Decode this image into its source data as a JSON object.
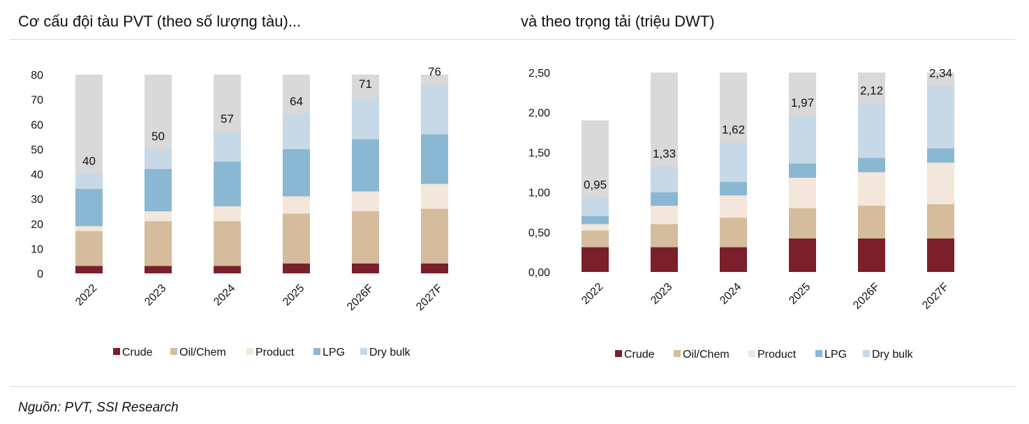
{
  "header": {
    "left_title": "Cơ cấu đội tàu PVT (theo số lượng tàu)...",
    "right_title": "và theo trọng tải (triệu DWT)"
  },
  "footer": {
    "source": "Nguồn: PVT, SSI Research"
  },
  "colors": {
    "Crude": "#7b1f2c",
    "Oil/Chem": "#d4bc9c",
    "Product": "#f3e6da",
    "LPG": "#8ab8d3",
    "Dry bulk": "#c7d8e6",
    "Background": "#d9d9d9"
  },
  "chart_data": [
    {
      "type": "bar",
      "stacked": true,
      "title": "Cơ cấu đội tàu PVT (theo số lượng tàu)...",
      "categories": [
        "2022",
        "2023",
        "2024",
        "2025",
        "2026F",
        "2027F"
      ],
      "ylim": [
        0,
        80
      ],
      "yticks": [
        "0",
        "10",
        "20",
        "30",
        "40",
        "50",
        "60",
        "70",
        "80"
      ],
      "background_bar_value": 80,
      "series": [
        {
          "name": "Crude",
          "values": [
            3,
            3,
            3,
            4,
            4,
            4
          ]
        },
        {
          "name": "Oil/Chem",
          "values": [
            14,
            18,
            18,
            20,
            21,
            22
          ]
        },
        {
          "name": "Product",
          "values": [
            2,
            4,
            6,
            7,
            8,
            10
          ]
        },
        {
          "name": "LPG",
          "values": [
            15,
            17,
            18,
            19,
            21,
            20
          ]
        },
        {
          "name": "Dry bulk",
          "values": [
            6,
            8,
            12,
            14,
            17,
            20
          ]
        }
      ],
      "total_labels": [
        "40",
        "50",
        "57",
        "64",
        "71",
        "76"
      ],
      "legend": [
        "Crude",
        "Oil/Chem",
        "Product",
        "LPG",
        "Dry bulk"
      ],
      "legend_position": "bottom",
      "grid": false
    },
    {
      "type": "bar",
      "stacked": true,
      "title": "và theo trọng tải (triệu DWT)",
      "categories": [
        "2022",
        "2023",
        "2024",
        "2025",
        "2026F",
        "2027F"
      ],
      "ylim": [
        0,
        2.5
      ],
      "yticks": [
        "0,00",
        "0,50",
        "1,00",
        "1,50",
        "2,00",
        "2,50"
      ],
      "background_bar_values": [
        1.9,
        2.5,
        2.5,
        2.5,
        2.5,
        2.5
      ],
      "series": [
        {
          "name": "Crude",
          "values": [
            0.31,
            0.31,
            0.31,
            0.42,
            0.42,
            0.42
          ]
        },
        {
          "name": "Oil/Chem",
          "values": [
            0.21,
            0.29,
            0.37,
            0.38,
            0.41,
            0.43
          ]
        },
        {
          "name": "Product",
          "values": [
            0.08,
            0.23,
            0.28,
            0.38,
            0.42,
            0.52
          ]
        },
        {
          "name": "LPG",
          "values": [
            0.1,
            0.17,
            0.17,
            0.18,
            0.18,
            0.18
          ]
        },
        {
          "name": "Dry bulk",
          "values": [
            0.23,
            0.32,
            0.49,
            0.6,
            0.68,
            0.78
          ]
        }
      ],
      "total_labels": [
        "0,95",
        "1,33",
        "1,62",
        "1,97",
        "2,12",
        "2,34"
      ],
      "legend": [
        "Crude",
        "Oil/Chem",
        "Product",
        "LPG",
        "Dry bulk"
      ],
      "legend_position": "bottom",
      "grid": false
    }
  ]
}
